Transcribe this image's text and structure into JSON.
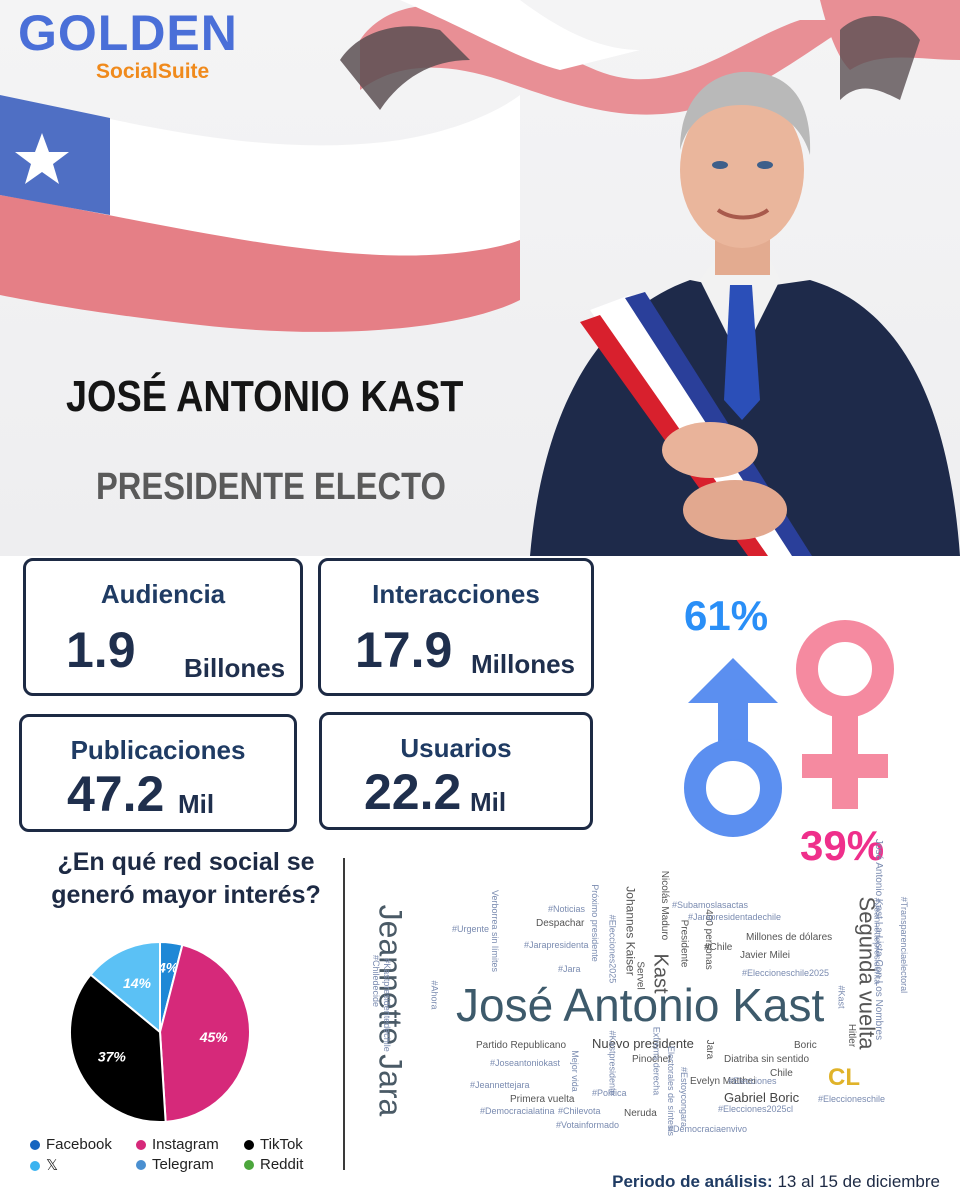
{
  "brand": {
    "name": "GOLDEN",
    "sub": "SocialSuite"
  },
  "headline": {
    "name": "JOSÉ ANTONIO KAST",
    "role": "PRESIDENTE ELECTO"
  },
  "stats": {
    "audiencia": {
      "label": "Audiencia",
      "value": "1.9",
      "unit": "Billones"
    },
    "interacciones": {
      "label": "Interacciones",
      "value": "17.9",
      "unit": "Millones"
    },
    "publicaciones": {
      "label": "Publicaciones",
      "value": "47.2",
      "unit": "Mil"
    },
    "usuarios": {
      "label": "Usuarios",
      "value": "22.2",
      "unit": "Mil"
    }
  },
  "gender": {
    "male": {
      "pct": "61%",
      "color": "#5b8ff0"
    },
    "female": {
      "pct": "39%",
      "color": "#f58aa0"
    },
    "male_label_color": "#2a8ff7",
    "female_label_color": "#ef2f8b"
  },
  "social": {
    "question": "¿En qué red social se generó mayor interés?",
    "legend": [
      {
        "name": "Facebook",
        "color": "#1565c0"
      },
      {
        "name": "Instagram",
        "color": "#d6297a"
      },
      {
        "name": "TikTok",
        "color": "#000000"
      },
      {
        "name": "𝕏",
        "color": "#3bb3f0"
      },
      {
        "name": "Telegram",
        "color": "#4a8fd0"
      },
      {
        "name": "Reddit",
        "color": "#4ca63c"
      }
    ]
  },
  "chart_data": {
    "type": "pie",
    "slices": [
      {
        "name": "Facebook",
        "value": 4,
        "label": "4%",
        "color": "#1e88d6"
      },
      {
        "name": "Instagram",
        "value": 45,
        "label": "45%",
        "color": "#d6297a"
      },
      {
        "name": "TikTok",
        "value": 37,
        "label": "37%",
        "color": "#000000"
      },
      {
        "name": "𝕏",
        "value": 14,
        "label": "14%",
        "color": "#5bc1f5"
      }
    ]
  },
  "wordcloud": {
    "main": "José Antonio Kast",
    "jeannette": "Jeannette Jara",
    "segunda": "Segunda vuelta",
    "kast": "Kast",
    "cl": "CL",
    "words": {
      "w1": "Nuevo presidente",
      "w2": "Partido Republicano",
      "w3": "Pinochet",
      "w4": "Evelyn Matthei",
      "w5": "Gabriel Boric",
      "w6": "Primera vuelta",
      "w7": "Chile",
      "w8": "Millones de dólares",
      "w9": "Javier Milei",
      "w10": "#Eleccioneschile2025",
      "w11": "Johannes Kaiser",
      "w12": "Presidente",
      "w13": "Despachar",
      "w14": "Verborrea sin límites",
      "w15": "Próximo presidente",
      "w16": "#Elecciones2025",
      "w17": "Nicolás Maduro",
      "w18": "400 personas",
      "w19": "#Chile",
      "w20": "#Subamoslasactas",
      "w21": "#Jarapresidentadechile",
      "w22": "#Noticias",
      "w23": "#Jarapresidenta",
      "w24": "Diatriba sin sentido",
      "w25": "Boric",
      "w26": "#Elecciones",
      "w27": "#Elecciones2025cl",
      "w28": "#Eleccioneschile",
      "w29": "#Democraciaenvivo",
      "w30": "#Votainformado",
      "w31": "#Democracialatina",
      "w32": "#Chilevota",
      "w33": "Neruda",
      "w34": "Extrema derecha",
      "w35": "Electorales de síntesis",
      "w36": "#Jeannettejara",
      "w37": "#Joseantoniokast",
      "w38": "Mejor vida",
      "w39": "Jara",
      "w40": "Hitler",
      "w41": "Servel",
      "w42": "#Transparenciaelectoral",
      "w43": "#Jeannettepresidenta",
      "w44": "José Antonio Kast La Lista Con Los Nombres",
      "w45": "#Kastpresidentedechile",
      "w46": "#Chiledecide",
      "w47": "#Kast",
      "w48": "#Urgente",
      "w49": "#Ahora",
      "w50": "#Jara",
      "w51": "#Política",
      "w52": "#Estoycongara",
      "w53": "#Kastpresidente"
    }
  },
  "periodo": {
    "label": "Periodo de análisis:",
    "value": "13 al 15 de diciembre"
  }
}
